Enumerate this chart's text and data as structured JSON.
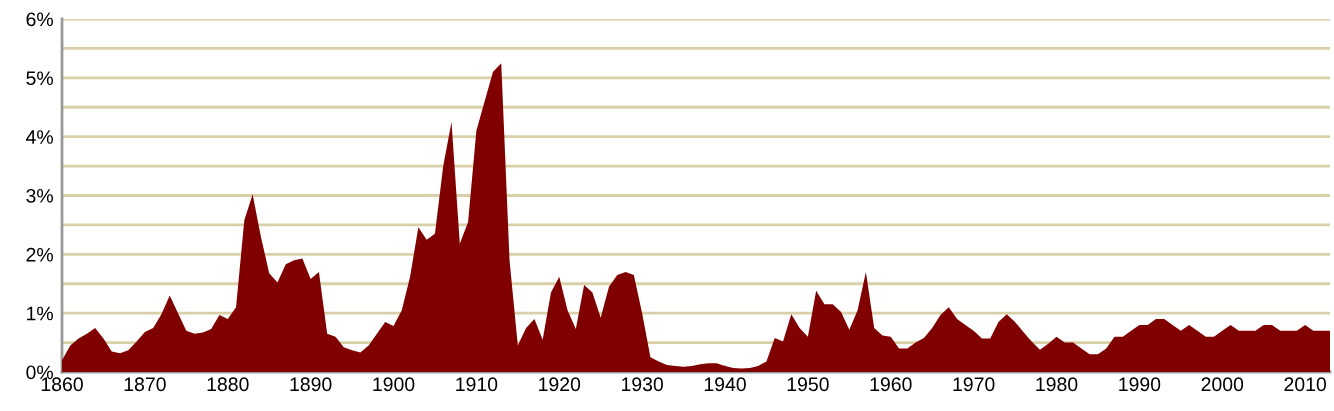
{
  "chart_data": {
    "type": "area",
    "x": [
      1860,
      1861,
      1862,
      1863,
      1864,
      1865,
      1866,
      1867,
      1868,
      1869,
      1870,
      1871,
      1872,
      1873,
      1874,
      1875,
      1876,
      1877,
      1878,
      1879,
      1880,
      1881,
      1882,
      1883,
      1884,
      1885,
      1886,
      1887,
      1888,
      1889,
      1890,
      1891,
      1892,
      1893,
      1894,
      1895,
      1896,
      1897,
      1898,
      1899,
      1900,
      1901,
      1902,
      1903,
      1904,
      1905,
      1906,
      1907,
      1908,
      1909,
      1910,
      1911,
      1912,
      1913,
      1914,
      1915,
      1916,
      1917,
      1918,
      1919,
      1920,
      1921,
      1922,
      1923,
      1924,
      1925,
      1926,
      1927,
      1928,
      1929,
      1930,
      1931,
      1932,
      1933,
      1934,
      1935,
      1936,
      1937,
      1938,
      1939,
      1940,
      1941,
      1942,
      1943,
      1944,
      1945,
      1946,
      1947,
      1948,
      1949,
      1950,
      1951,
      1952,
      1953,
      1954,
      1955,
      1956,
      1957,
      1958,
      1959,
      1960,
      1961,
      1962,
      1963,
      1964,
      1965,
      1966,
      1967,
      1968,
      1969,
      1970,
      1971,
      1972,
      1973,
      1974,
      1975,
      1976,
      1977,
      1978,
      1979,
      1980,
      1981,
      1982,
      1983,
      1984,
      1985,
      1986,
      1987,
      1988,
      1989,
      1990,
      1991,
      1992,
      1993,
      1994,
      1995,
      1996,
      1997,
      1998,
      1999,
      2000,
      2001,
      2002,
      2003,
      2004,
      2005,
      2006,
      2007,
      2008,
      2009,
      2010,
      2011,
      2012,
      2013
    ],
    "series": [
      {
        "color": "#800000",
        "values": [
          0.2,
          0.45,
          0.57,
          0.65,
          0.75,
          0.57,
          0.35,
          0.32,
          0.37,
          0.52,
          0.68,
          0.75,
          0.98,
          1.3,
          1.0,
          0.7,
          0.65,
          0.67,
          0.73,
          0.97,
          0.9,
          1.1,
          2.58,
          3.02,
          2.3,
          1.68,
          1.52,
          1.83,
          1.9,
          1.93,
          1.58,
          1.7,
          0.65,
          0.6,
          0.42,
          0.37,
          0.33,
          0.45,
          0.65,
          0.85,
          0.78,
          1.05,
          1.62,
          2.46,
          2.25,
          2.35,
          3.5,
          4.25,
          2.18,
          2.55,
          4.1,
          4.6,
          5.1,
          5.25,
          1.9,
          0.45,
          0.75,
          0.9,
          0.55,
          1.35,
          1.62,
          1.05,
          0.73,
          1.48,
          1.35,
          0.92,
          1.45,
          1.65,
          1.7,
          1.65,
          1.0,
          0.25,
          0.18,
          0.12,
          0.1,
          0.09,
          0.1,
          0.13,
          0.15,
          0.15,
          0.1,
          0.07,
          0.06,
          0.07,
          0.1,
          0.18,
          0.58,
          0.52,
          0.98,
          0.75,
          0.6,
          1.38,
          1.15,
          1.15,
          1.02,
          0.72,
          1.05,
          1.7,
          0.75,
          0.62,
          0.6,
          0.4,
          0.4,
          0.5,
          0.58,
          0.75,
          0.97,
          1.1,
          0.9,
          0.8,
          0.7,
          0.57,
          0.57,
          0.85,
          0.98,
          0.85,
          0.68,
          0.52,
          0.38,
          0.48,
          0.6,
          0.5,
          0.5,
          0.4,
          0.3,
          0.3,
          0.4,
          0.6,
          0.6,
          0.7,
          0.8,
          0.8,
          0.9,
          0.9,
          0.8,
          0.7,
          0.8,
          0.7,
          0.6,
          0.6,
          0.7,
          0.8,
          0.7,
          0.7,
          0.7,
          0.8,
          0.8,
          0.7,
          0.7,
          0.7,
          0.8,
          0.7,
          0.7,
          0.7
        ]
      }
    ],
    "xlim": [
      1860,
      2013
    ],
    "xticks": [
      1860,
      1870,
      1880,
      1890,
      1900,
      1910,
      1920,
      1930,
      1940,
      1950,
      1960,
      1970,
      1980,
      1990,
      2000,
      2010
    ],
    "ylim": [
      0,
      6
    ],
    "yticks": [
      {
        "value": 0,
        "label": "0%"
      },
      {
        "value": 0.5,
        "label": null
      },
      {
        "value": 1,
        "label": "1%"
      },
      {
        "value": 1.5,
        "label": null
      },
      {
        "value": 2,
        "label": "2%"
      },
      {
        "value": 2.5,
        "label": null
      },
      {
        "value": 3,
        "label": "3%"
      },
      {
        "value": 3.5,
        "label": null
      },
      {
        "value": 4,
        "label": "4%"
      },
      {
        "value": 4.5,
        "label": null
      },
      {
        "value": 5,
        "label": "5%"
      },
      {
        "value": 5.5,
        "label": null
      },
      {
        "value": 6,
        "label": "6%"
      }
    ],
    "grid": "y"
  }
}
